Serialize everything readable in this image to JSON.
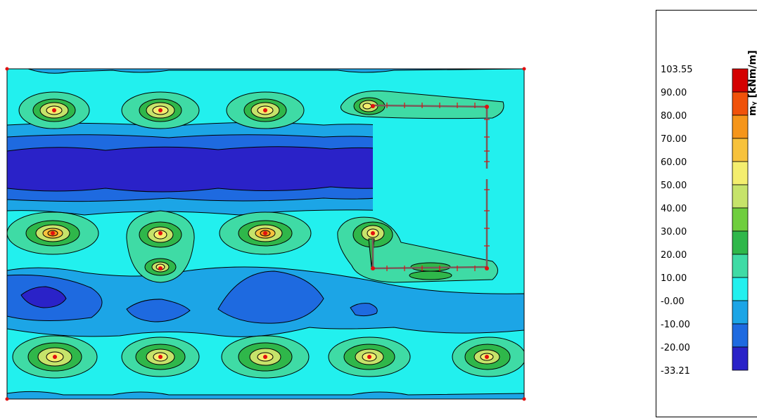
{
  "legend": {
    "unit": "mᵧ [kNm/m]",
    "levels": [
      {
        "label": "103.55",
        "color": "#d40000"
      },
      {
        "label": "90.00",
        "color": "#f0520a"
      },
      {
        "label": "80.00",
        "color": "#f5951a"
      },
      {
        "label": "70.00",
        "color": "#f7c23c"
      },
      {
        "label": "60.00",
        "color": "#f4ee6e"
      },
      {
        "label": "50.00",
        "color": "#c6e36a"
      },
      {
        "label": "40.00",
        "color": "#6fce3e"
      },
      {
        "label": "30.00",
        "color": "#2fb74a"
      },
      {
        "label": "20.00",
        "color": "#3fdba5"
      },
      {
        "label": "10.00",
        "color": "#22f0ee"
      },
      {
        "label": "-0.00",
        "color": "#1ca5e6"
      },
      {
        "label": "-10.00",
        "color": "#1e6ae0"
      },
      {
        "label": "-20.00",
        "color": "#2a22c8"
      },
      {
        "label": "-33.21",
        "color": ""
      }
    ]
  },
  "colors": {
    "background_field": "#22f0ee",
    "band_outer_negative": "#1ca5e6",
    "band_mid_negative": "#1e6ae0",
    "band_deep_negative": "#2a22c8",
    "support_marker": "#e01010",
    "opening_edge": "#7a5a5a"
  }
}
